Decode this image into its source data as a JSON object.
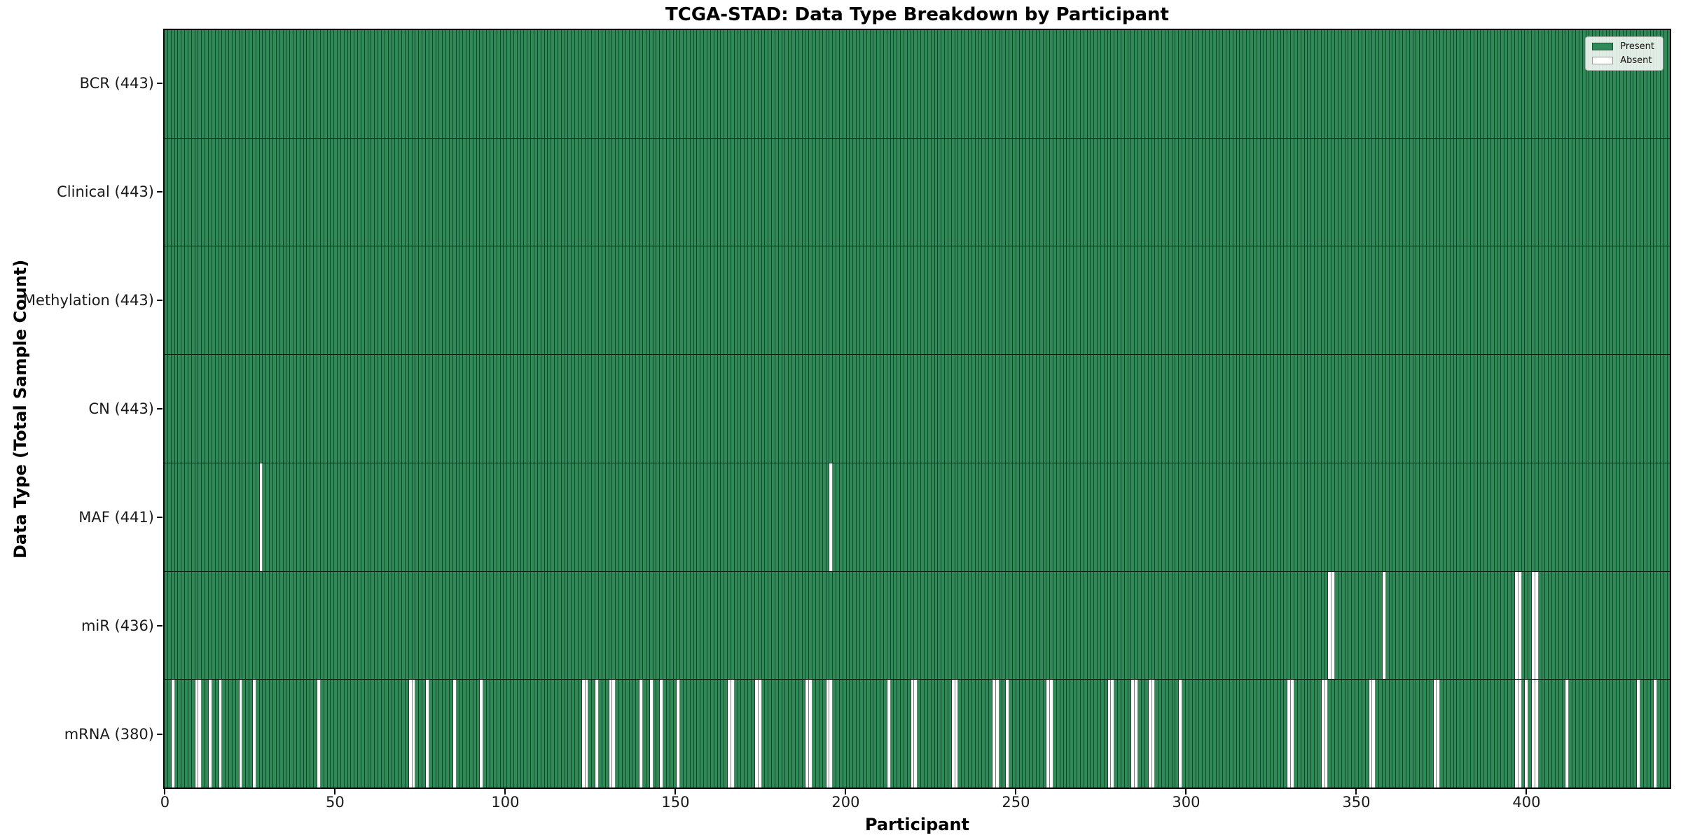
{
  "title": "TCGA-STAD: Data Type Breakdown by Participant",
  "chart_data": {
    "type": "heatmap",
    "title": "TCGA-STAD: Data Type Breakdown by Participant",
    "xlabel": "Participant",
    "ylabel": "Data Type (Total Sample Count)",
    "n_participants": 443,
    "xlim": [
      -0.5,
      442.5
    ],
    "x_ticks": [
      0,
      50,
      100,
      150,
      200,
      250,
      300,
      350,
      400
    ],
    "grid": false,
    "colors": {
      "present": "#2e8b57",
      "absent": "#ffffff",
      "cell_edge": "rgba(0,0,0,0.52)",
      "row_separator": "#0d1f14",
      "axes_edge": "#000000"
    },
    "legend": {
      "position": "upper right",
      "entries": [
        {
          "label": "Present",
          "color": "#2e8b57"
        },
        {
          "label": "Absent",
          "color": "#ffffff"
        }
      ]
    },
    "rows": [
      {
        "name": "BCR",
        "label": "BCR (443)",
        "present_count": 443,
        "absent": []
      },
      {
        "name": "Clinical",
        "label": "Clinical (443)",
        "present_count": 443,
        "absent": []
      },
      {
        "name": "Methylation",
        "label": "Methylation (443)",
        "present_count": 443,
        "absent": []
      },
      {
        "name": "CN",
        "label": "CN (443)",
        "present_count": 443,
        "absent": []
      },
      {
        "name": "MAF",
        "label": "MAF (441)",
        "present_count": 441,
        "absent": [
          28,
          196
        ]
      },
      {
        "name": "miR",
        "label": "miR (436)",
        "present_count": 436,
        "absent": [
          343,
          344,
          359,
          398,
          399,
          403,
          404
        ]
      },
      {
        "name": "mRNA",
        "label": "mRNA (380)",
        "present_count": 380,
        "absent": [
          2,
          9,
          10,
          13,
          16,
          22,
          26,
          45,
          72,
          73,
          77,
          85,
          93,
          123,
          124,
          127,
          131,
          132,
          140,
          143,
          146,
          151,
          166,
          167,
          174,
          175,
          189,
          190,
          195,
          196,
          213,
          220,
          221,
          232,
          233,
          244,
          245,
          248,
          260,
          261,
          278,
          279,
          285,
          286,
          290,
          291,
          299,
          331,
          332,
          341,
          342,
          355,
          356,
          374,
          375,
          398,
          399,
          401,
          403,
          404,
          413,
          434,
          439
        ]
      }
    ]
  }
}
